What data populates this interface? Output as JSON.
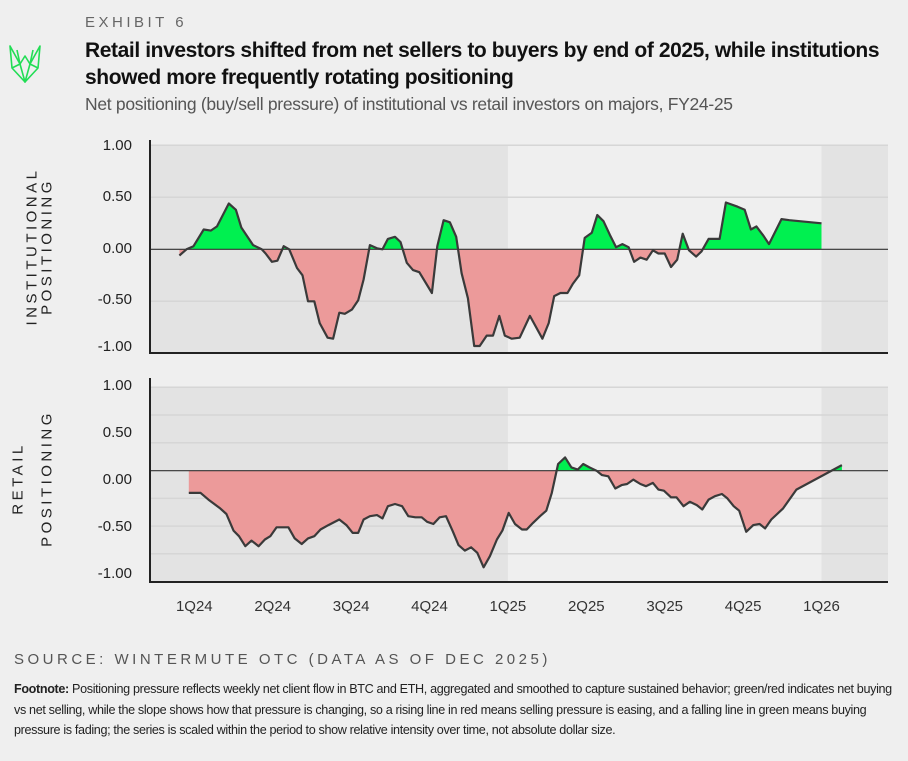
{
  "header": {
    "exhibit": "EXHIBIT 6",
    "title": "Retail investors shifted from net sellers to buyers by end of 2025, while institutions showed more frequently rotating positioning",
    "subtitle": "Net positioning (buy/sell pressure) of institutional vs retail investors on majors, FY24-25"
  },
  "colors": {
    "positive": "#00f050",
    "negative": "#ec9a9a",
    "line": "#3a3a3a",
    "shade": "#e3e3e3",
    "logo": "#22dd55"
  },
  "source": "SOURCE: WINTERMUTE OTC (DATA AS OF DEC 2025)",
  "footnote": {
    "label": "Footnote:",
    "text": " Positioning pressure reflects weekly net client flow in BTC and ETH, aggregated and smoothed to capture sustained behavior; green/red indicates net buying vs net selling, while the slope shows how that pressure is changing, so a rising line in red means selling pressure is easing, and a falling line in green means buying pressure is fading; the series is scaled within the period to show relative intensity over time, not absolute dollar size."
  },
  "chart_data": [
    {
      "type": "area",
      "ylabel": [
        "INSTITUTIONAL",
        "POSITIONING"
      ],
      "yticks": [
        "1.00",
        "0.50",
        "0.00",
        "-0.50",
        "-1.00"
      ],
      "ylim": [
        -1,
        1
      ],
      "x_unit": "quarters since 1Q24",
      "xticks": [
        "1Q24",
        "2Q24",
        "3Q24",
        "4Q24",
        "1Q25",
        "2Q25",
        "3Q25",
        "4Q25",
        "1Q26"
      ],
      "x": [
        -0.19,
        -0.1,
        -0.01,
        0.12,
        0.21,
        0.29,
        0.44,
        0.53,
        0.6,
        0.75,
        0.86,
        0.91,
        0.99,
        1.06,
        1.14,
        1.21,
        1.31,
        1.38,
        1.45,
        1.53,
        1.6,
        1.7,
        1.77,
        1.85,
        1.92,
        2.01,
        2.09,
        2.16,
        2.24,
        2.33,
        2.4,
        2.47,
        2.56,
        2.63,
        2.71,
        2.79,
        2.87,
        3.03,
        3.1,
        3.18,
        3.26,
        3.34,
        3.41,
        3.49,
        3.57,
        3.64,
        3.73,
        3.81,
        3.89,
        3.96,
        4.05,
        4.15,
        4.28,
        4.44,
        4.52,
        4.59,
        4.67,
        4.76,
        4.83,
        4.91,
        4.98,
        5.07,
        5.14,
        5.22,
        5.3,
        5.38,
        5.46,
        5.54,
        5.61,
        5.69,
        5.77,
        5.85,
        5.92,
        6.0,
        6.08,
        6.16,
        6.23,
        6.31,
        6.4,
        6.47,
        6.56,
        6.7,
        6.78,
        6.93,
        7.02,
        7.1,
        7.17,
        7.26,
        7.33,
        7.49,
        7.59,
        8.0
      ],
      "values": [
        -0.06,
        0,
        0.03,
        0.19,
        0.18,
        0.22,
        0.44,
        0.38,
        0.21,
        0.04,
        0,
        -0.04,
        -0.12,
        -0.11,
        0.03,
        0,
        -0.18,
        -0.25,
        -0.5,
        -0.5,
        -0.71,
        -0.85,
        -0.86,
        -0.61,
        -0.62,
        -0.58,
        -0.49,
        -0.29,
        0.04,
        0.01,
        0,
        0.1,
        0.12,
        0.07,
        -0.13,
        -0.2,
        -0.22,
        -0.42,
        0.03,
        0.28,
        0.26,
        0.12,
        -0.23,
        -0.47,
        -0.93,
        -0.93,
        -0.83,
        -0.83,
        -0.64,
        -0.83,
        -0.86,
        -0.85,
        -0.64,
        -0.86,
        -0.71,
        -0.45,
        -0.42,
        -0.42,
        -0.33,
        -0.25,
        0.11,
        0.16,
        0.33,
        0.27,
        0.14,
        0.02,
        0.05,
        0.02,
        -0.12,
        -0.08,
        -0.1,
        -0.01,
        -0.04,
        -0.04,
        -0.17,
        -0.1,
        0.15,
        -0.01,
        -0.07,
        -0.02,
        0.1,
        0.1,
        0.45,
        0.41,
        0.38,
        0.19,
        0.22,
        0.13,
        0.05,
        0.29,
        0.28,
        0.25
      ]
    },
    {
      "type": "area",
      "ylabel": [
        "RETAIL",
        "POSITIONING"
      ],
      "yticks": [
        "1.00",
        "0.50",
        "0.00",
        "-0.50",
        "-1.00"
      ],
      "ylim": [
        -1,
        0.75
      ],
      "x_unit": "quarters since 1Q24",
      "xticks": [
        "1Q24",
        "2Q24",
        "3Q24",
        "4Q24",
        "1Q25",
        "2Q25",
        "3Q25",
        "4Q25",
        "1Q26"
      ],
      "x": [
        -0.07,
        0.08,
        0.18,
        0.33,
        0.41,
        0.5,
        0.57,
        0.65,
        0.73,
        0.82,
        0.9,
        0.97,
        1.05,
        1.2,
        1.28,
        1.37,
        1.45,
        1.53,
        1.61,
        1.71,
        1.85,
        1.94,
        2.02,
        2.09,
        2.16,
        2.24,
        2.33,
        2.4,
        2.47,
        2.56,
        2.65,
        2.73,
        2.82,
        2.9,
        2.97,
        3.05,
        3.13,
        3.21,
        3.3,
        3.37,
        3.45,
        3.53,
        3.61,
        3.69,
        3.77,
        3.86,
        3.93,
        4.01,
        4.09,
        4.18,
        4.24,
        4.32,
        4.41,
        4.49,
        4.56,
        4.64,
        4.73,
        4.81,
        4.89,
        4.96,
        5.04,
        5.13,
        5.2,
        5.28,
        5.37,
        5.45,
        5.52,
        5.6,
        5.69,
        5.76,
        5.85,
        5.92,
        5.99,
        6.08,
        6.15,
        6.24,
        6.32,
        6.41,
        6.48,
        6.56,
        6.64,
        6.73,
        6.8,
        6.88,
        6.95,
        7.04,
        7.13,
        7.21,
        7.28,
        7.36,
        7.51,
        7.68,
        8.26
      ],
      "values": [
        -0.2,
        -0.2,
        -0.26,
        -0.34,
        -0.39,
        -0.54,
        -0.59,
        -0.68,
        -0.63,
        -0.68,
        -0.62,
        -0.59,
        -0.51,
        -0.51,
        -0.61,
        -0.66,
        -0.61,
        -0.59,
        -0.53,
        -0.49,
        -0.44,
        -0.49,
        -0.56,
        -0.56,
        -0.44,
        -0.41,
        -0.4,
        -0.43,
        -0.32,
        -0.3,
        -0.32,
        -0.41,
        -0.42,
        -0.42,
        -0.46,
        -0.48,
        -0.42,
        -0.41,
        -0.55,
        -0.67,
        -0.72,
        -0.69,
        -0.74,
        -0.87,
        -0.77,
        -0.62,
        -0.54,
        -0.38,
        -0.48,
        -0.53,
        -0.53,
        -0.47,
        -0.41,
        -0.36,
        -0.2,
        0.06,
        0.12,
        0.03,
        0.01,
        0.06,
        0.03,
        0,
        -0.04,
        -0.05,
        -0.16,
        -0.13,
        -0.12,
        -0.08,
        -0.12,
        -0.14,
        -0.11,
        -0.17,
        -0.18,
        -0.24,
        -0.24,
        -0.32,
        -0.28,
        -0.31,
        -0.35,
        -0.26,
        -0.23,
        -0.21,
        -0.25,
        -0.32,
        -0.36,
        -0.55,
        -0.49,
        -0.48,
        -0.52,
        -0.44,
        -0.34,
        -0.17,
        0.05
      ]
    }
  ]
}
